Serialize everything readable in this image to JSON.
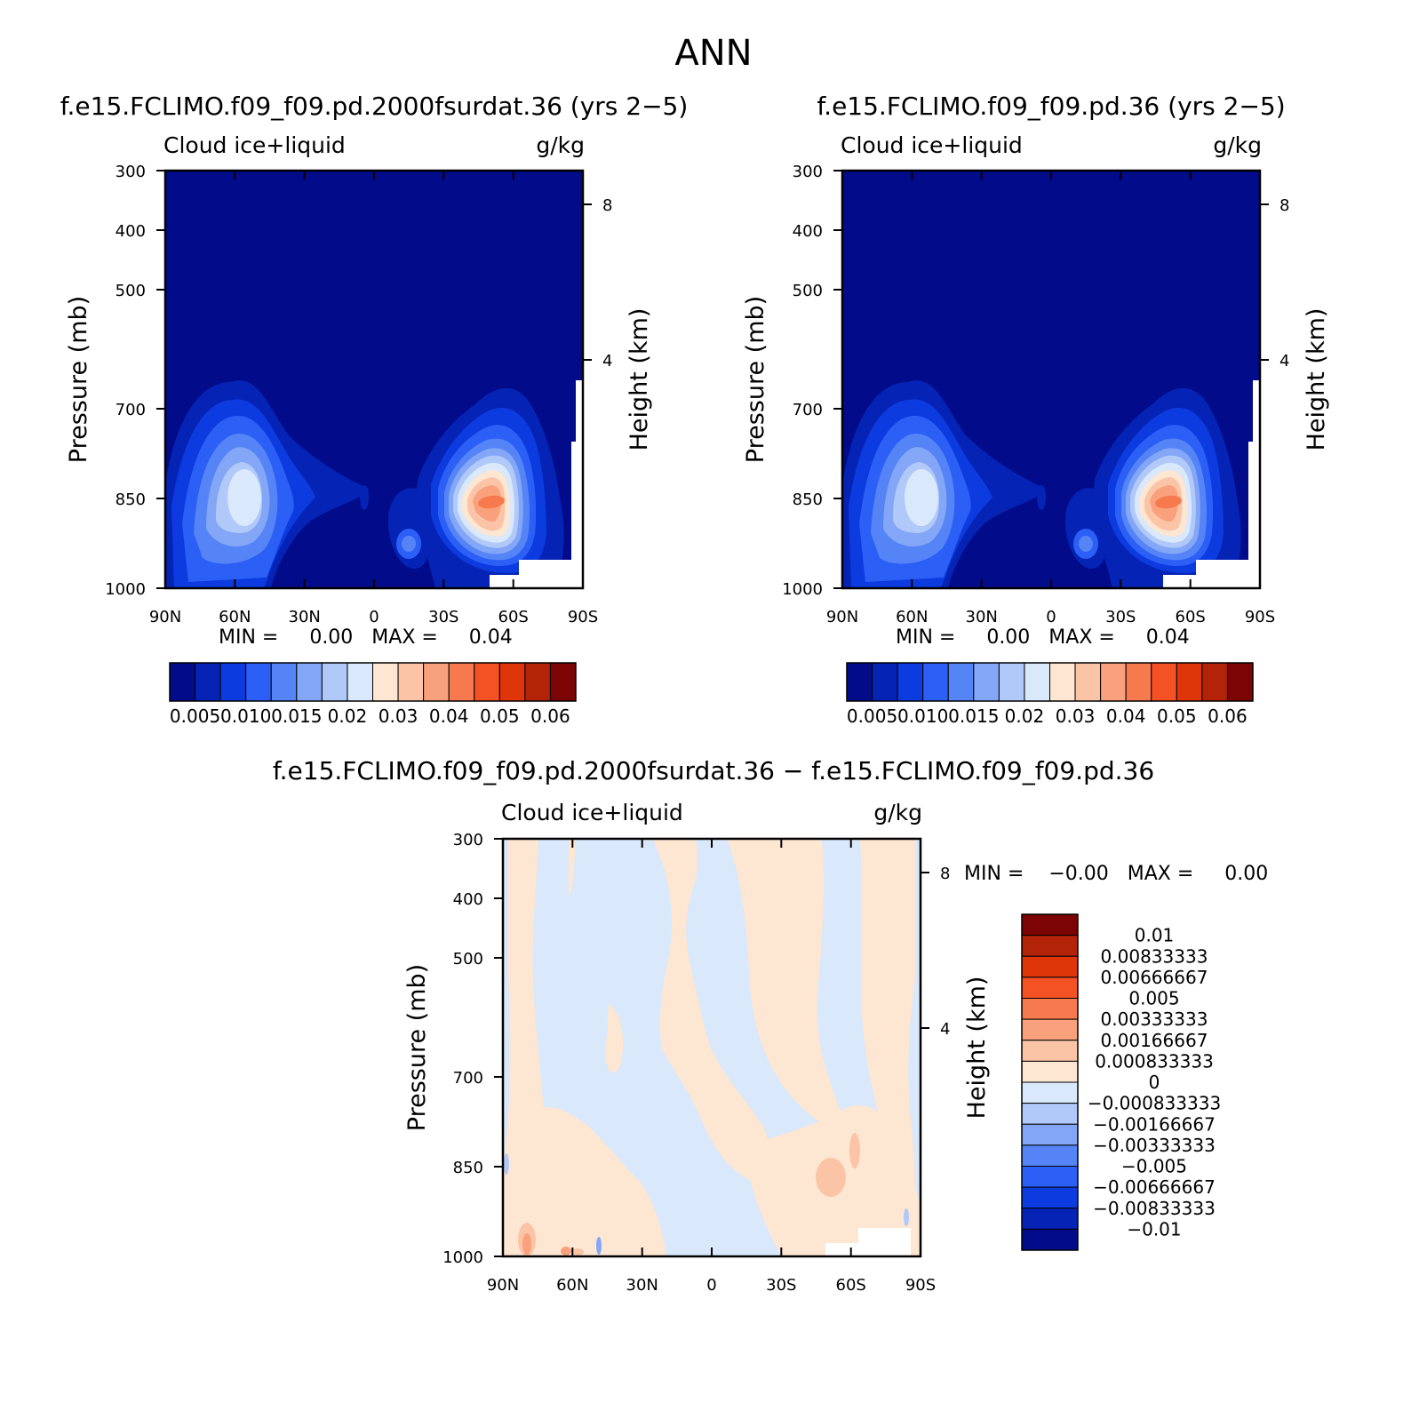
{
  "title": "ANN",
  "panels": [
    {
      "title": "f.e15.FCLIMO.f09_f09.pd.2000fsurdat.36 (yrs 2−5)",
      "left_label": "Cloud ice+liquid",
      "right_label": "g/kg",
      "ylabel": "Pressure (mb)",
      "y2label": "Height (km)",
      "minmax": "MIN =     0.00   MAX =     0.04"
    },
    {
      "title": "f.e15.FCLIMO.f09_f09.pd.36 (yrs 2−5)",
      "left_label": "Cloud ice+liquid",
      "right_label": "g/kg",
      "ylabel": "Pressure (mb)",
      "y2label": "Height (km)",
      "minmax": "MIN =     0.00   MAX =     0.04"
    },
    {
      "title": "f.e15.FCLIMO.f09_f09.pd.2000fsurdat.36 − f.e15.FCLIMO.f09_f09.pd.36",
      "left_label": "Cloud ice+liquid",
      "right_label": "g/kg",
      "ylabel": "Pressure (mb)",
      "y2label": "Height (km)",
      "minmax": "MIN =    −0.00   MAX =     0.00"
    }
  ],
  "chart_data": [
    {
      "type": "heatmap",
      "x_ticks": [
        "90N",
        "60N",
        "30N",
        "0",
        "30S",
        "60S",
        "90S"
      ],
      "y_ticks": [
        300,
        400,
        500,
        700,
        850,
        1000
      ],
      "y2_ticks": [
        8,
        4
      ],
      "ylim": [
        1000,
        300
      ],
      "max": 0.04,
      "features": [
        {
          "center": "60N",
          "pressure": 850,
          "value": 0.02
        },
        {
          "center": "50S",
          "pressure": 850,
          "value": 0.04
        }
      ],
      "colorbar": {
        "colors": [
          "#020c8a",
          "#0524b6",
          "#0c3be0",
          "#2c5ff5",
          "#5584f6",
          "#83a6f6",
          "#b1c9f8",
          "#d9e8fb",
          "#fde6d2",
          "#fbc4a6",
          "#f8a17c",
          "#f77a4e",
          "#f45124",
          "#de3509",
          "#b22308",
          "#7c0404"
        ],
        "labels": [
          "0.005",
          "0.010",
          "0.015",
          "0.02",
          "0.03",
          "0.04",
          "0.05",
          "0.06"
        ]
      }
    },
    {
      "type": "heatmap",
      "x_ticks": [
        "90N",
        "60N",
        "30N",
        "0",
        "30S",
        "60S",
        "90S"
      ],
      "y_ticks": [
        300,
        400,
        500,
        700,
        850,
        1000
      ],
      "y2_ticks": [
        8,
        4
      ],
      "ylim": [
        1000,
        300
      ],
      "max": 0.04,
      "features": [
        {
          "center": "60N",
          "pressure": 850,
          "value": 0.02
        },
        {
          "center": "50S",
          "pressure": 850,
          "value": 0.04
        }
      ],
      "colorbar": {
        "colors": [
          "#020c8a",
          "#0524b6",
          "#0c3be0",
          "#2c5ff5",
          "#5584f6",
          "#83a6f6",
          "#b1c9f8",
          "#d9e8fb",
          "#fde6d2",
          "#fbc4a6",
          "#f8a17c",
          "#f77a4e",
          "#f45124",
          "#de3509",
          "#b22308",
          "#7c0404"
        ],
        "labels": [
          "0.005",
          "0.010",
          "0.015",
          "0.02",
          "0.03",
          "0.04",
          "0.05",
          "0.06"
        ]
      }
    },
    {
      "type": "heatmap",
      "x_ticks": [
        "90N",
        "60N",
        "30N",
        "0",
        "30S",
        "60S",
        "90S"
      ],
      "y_ticks": [
        300,
        400,
        500,
        700,
        850,
        1000
      ],
      "y2_ticks": [
        8,
        4
      ],
      "ylim": [
        1000,
        300
      ],
      "colorbar": {
        "colors": [
          "#7c0404",
          "#b22308",
          "#de3509",
          "#f45124",
          "#f77a4e",
          "#f8a17c",
          "#fbc4a6",
          "#fde6d2",
          "#d9e8fb",
          "#b1c9f8",
          "#83a6f6",
          "#5584f6",
          "#2c5ff5",
          "#0c3be0",
          "#0524b6",
          "#020c8a"
        ],
        "labels": [
          "0.01",
          "0.00833333",
          "0.00666667",
          "0.005",
          "0.00333333",
          "0.00166667",
          "0.000833333",
          "0",
          "−0.000833333",
          "−0.00166667",
          "−0.00333333",
          "−0.005",
          "−0.00666667",
          "−0.00833333",
          "−0.01"
        ]
      }
    }
  ]
}
